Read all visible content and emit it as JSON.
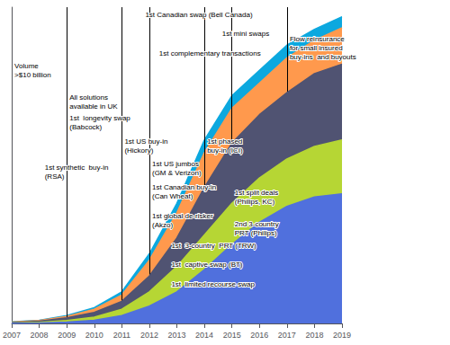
{
  "chart_data": {
    "type": "area",
    "x": [
      2007,
      2008,
      2009,
      2010,
      2011,
      2012,
      2013,
      2014,
      2015,
      2016,
      2017,
      2018,
      2019
    ],
    "series": [
      {
        "values": [
          0.05,
          0.15,
          0.4,
          1.0,
          2.5,
          5.5,
          10.0,
          17.0,
          25.0,
          32.0,
          37.0,
          40.0,
          41.0
        ]
      },
      {
        "values": [
          0.15,
          0.35,
          0.9,
          2.0,
          4.5,
          10.0,
          18.0,
          28.0,
          38.0,
          46.0,
          52.0,
          56.0,
          58.0
        ]
      },
      {
        "values": [
          0.3,
          0.7,
          1.8,
          3.5,
          7.0,
          15.0,
          27.0,
          43.0,
          57.0,
          66.0,
          73.0,
          79.0,
          82.0
        ]
      },
      {
        "values": [
          0.4,
          0.9,
          2.2,
          4.5,
          9.0,
          20.0,
          35.0,
          54.0,
          68.0,
          76.0,
          84.0,
          89.5,
          93.5
        ]
      },
      {
        "values": [
          0.5,
          1.0,
          2.5,
          5.0,
          10.0,
          22.0,
          38.0,
          58.0,
          72.0,
          80.0,
          88.0,
          93.0,
          97.0
        ]
      }
    ],
    "stacked": false,
    "xlim": [
      2007,
      2019
    ],
    "xticks": [
      2007,
      2008,
      2009,
      2010,
      2011,
      2012,
      2013,
      2014,
      2015,
      2016,
      2017,
      2018,
      2019
    ],
    "ylim": [
      0,
      100
    ],
    "tick_labels": "x",
    "grid": false,
    "vlines": [
      2009,
      2011,
      2012,
      2014,
      2015,
      2017
    ],
    "annotations": [
      {
        "text": "1st Canadian swap (Bell Canada)",
        "x": 2013.8
      },
      {
        "text": "1st mini swaps",
        "x": 2015.5
      },
      {
        "text": "1st complementary transactions",
        "x": 2014.2
      },
      {
        "text": "1st US buy-in\n(Hickory)",
        "x": 2011.1
      },
      {
        "text": "1st US jumbos\n(GM & Verizon)",
        "x": 2012.1
      },
      {
        "text": "1st Canadian buy-in\n(Can Wheat)",
        "x": 2012.1
      },
      {
        "text": "1st global de-risker\n(Akzo)",
        "x": 2012.1
      },
      {
        "text": "1st  3-country  PRT (TRW)",
        "x": 2012.8
      },
      {
        "text": "1st  captive swap (BT)",
        "x": 2012.8
      },
      {
        "text": "1st  limited recourse swap",
        "x": 2012.8
      },
      {
        "text": "1st phased\nbuy-in (ICI)",
        "x": 2014.1
      },
      {
        "text": "1st split deals\n(Philips, KC)",
        "x": 2015.1
      },
      {
        "text": "2nd 3-country\nPRT (Philips)",
        "x": 2015.1
      },
      {
        "text": "Volume\n>$10 billion",
        "x": 2007.1
      },
      {
        "text": "All solutions\navailable in UK",
        "x": 2009.1
      },
      {
        "text": "1st  longevity swap\n(Babcock)",
        "x": 2009.1
      },
      {
        "text": "1st synthetic  buy-in\n(RSA)",
        "x": 2008.2
      },
      {
        "text": "Flow reinsurance\nfor small insured\nbuy-ins  and buyouts",
        "x": 2017.1
      }
    ]
  }
}
